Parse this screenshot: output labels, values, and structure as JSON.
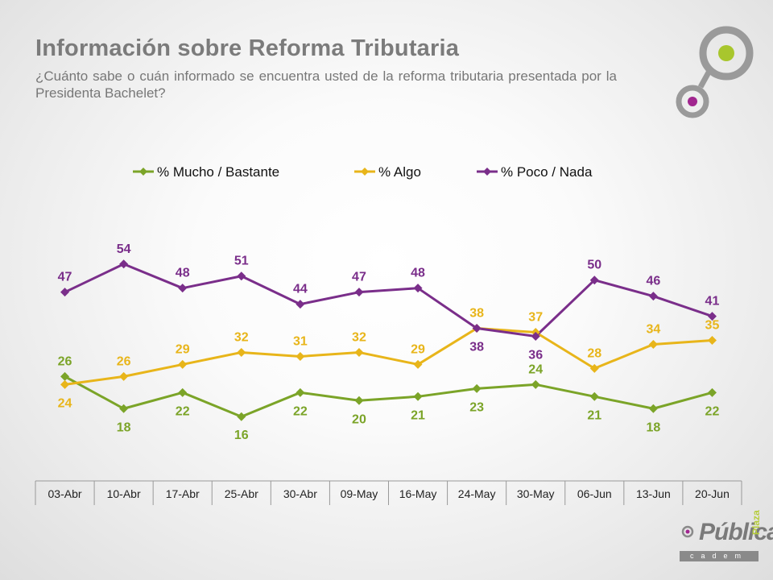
{
  "header": {
    "title": "Información sobre Reforma Tributaria",
    "subtitle": "¿Cuánto sabe o cuán informado se encuentra usted de la reforma tributaria presentada por la Presidenta Bachelet?"
  },
  "brand": {
    "name": "Pública",
    "tag": "Plaza",
    "sub": "cadem"
  },
  "colors": {
    "mucho": "#7ba428",
    "algo": "#e8b51a",
    "poco": "#7a2e8a",
    "axis": "#999999",
    "logo_gray": "#9a9a9a",
    "logo_green": "#a8c62d",
    "logo_purple": "#a1268f"
  },
  "chart_data": {
    "type": "line",
    "categories": [
      "03-Abr",
      "10-Abr",
      "17-Abr",
      "25-Abr",
      "30-Abr",
      "09-May",
      "16-May",
      "24-May",
      "30-May",
      "06-Jun",
      "13-Jun",
      "20-Jun"
    ],
    "ylim": [
      0,
      70
    ],
    "grid": false,
    "legend": "top",
    "series": [
      {
        "name": "% Mucho / Bastante",
        "key": "mucho",
        "values": [
          26,
          18,
          22,
          16,
          22,
          20,
          21,
          23,
          24,
          21,
          18,
          22
        ],
        "label_pos": [
          "above",
          "below",
          "below",
          "below",
          "below",
          "below",
          "below",
          "below",
          "above",
          "below",
          "below",
          "below"
        ]
      },
      {
        "name": "% Algo",
        "key": "algo",
        "values": [
          24,
          26,
          29,
          32,
          31,
          32,
          29,
          38,
          37,
          28,
          34,
          35
        ],
        "label_pos": [
          "below",
          "above",
          "above",
          "above",
          "above",
          "above",
          "above",
          "above",
          "above",
          "above",
          "above",
          "above"
        ]
      },
      {
        "name": "% Poco / Nada",
        "key": "poco",
        "values": [
          47,
          54,
          48,
          51,
          44,
          47,
          48,
          38,
          36,
          50,
          46,
          41
        ],
        "label_pos": [
          "above",
          "above",
          "above",
          "above",
          "above",
          "above",
          "above",
          "below",
          "below",
          "above",
          "above",
          "above"
        ]
      }
    ]
  }
}
